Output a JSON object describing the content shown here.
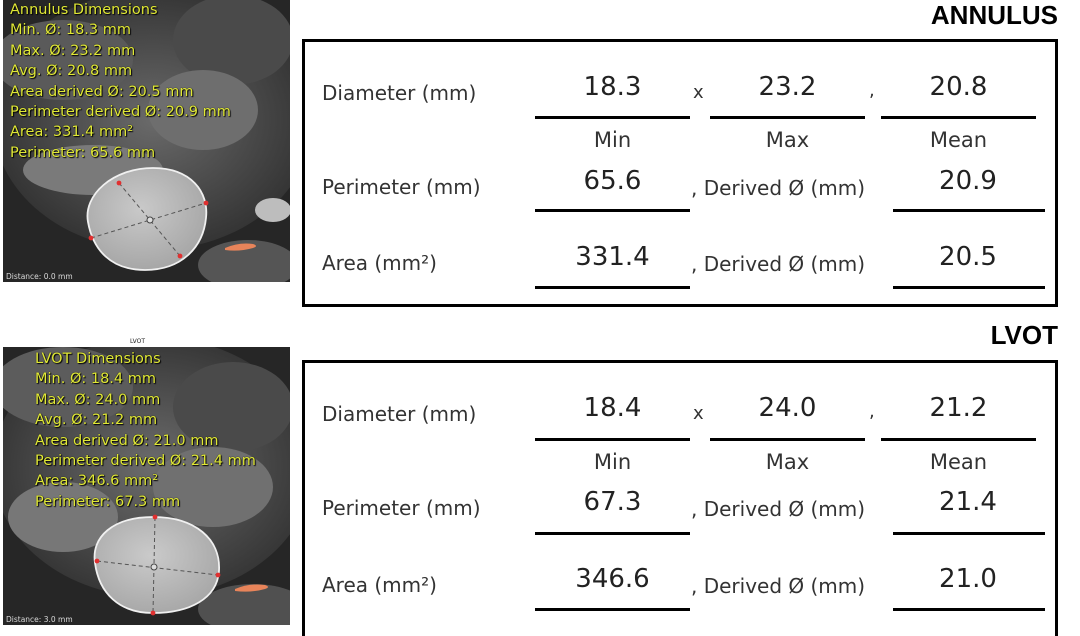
{
  "annulus": {
    "title": "ANNULUS",
    "overlay": {
      "lines": [
        "Annulus Dimensions",
        "Min. Ø: 18.3 mm",
        "Max. Ø: 23.2 mm",
        "Avg. Ø: 20.8 mm",
        "Area derived Ø: 20.5 mm",
        "Perimeter derived Ø: 20.9 mm",
        "Area: 331.4 mm²",
        "Perimeter: 65.6 mm"
      ],
      "distance": "Distance: 0.0 mm"
    },
    "diameter_label": "Diameter (mm)",
    "min": "18.3",
    "max": "23.2",
    "mean": "20.8",
    "x_sep": "x",
    "comma": ",",
    "min_label": "Min",
    "max_label": "Max",
    "mean_label": "Mean",
    "perimeter_label": "Perimeter (mm)",
    "perimeter": "65.6",
    "perimeter_derived_label": ", Derived Ø (mm)",
    "perimeter_derived": "20.9",
    "area_label": "Area (mm²)",
    "area": "331.4",
    "area_derived_label": ", Derived Ø (mm)",
    "area_derived": "20.5"
  },
  "lvot": {
    "title": "LVOT",
    "caption": "LVOT",
    "overlay": {
      "lines": [
        "LVOT Dimensions",
        "Min. Ø: 18.4 mm",
        "Max. Ø: 24.0 mm",
        "Avg. Ø: 21.2 mm",
        "Area derived Ø: 21.0 mm",
        "Perimeter derived Ø: 21.4 mm",
        "Area: 346.6 mm²",
        "Perimeter: 67.3 mm"
      ],
      "distance": "Distance: 3.0 mm"
    },
    "diameter_label": "Diameter (mm)",
    "min": "18.4",
    "max": "24.0",
    "mean": "21.2",
    "x_sep": "x",
    "comma": ",",
    "min_label": "Min",
    "max_label": "Max",
    "mean_label": "Mean",
    "perimeter_label": "Perimeter (mm)",
    "perimeter": "67.3",
    "perimeter_derived_label": ", Derived Ø (mm)",
    "perimeter_derived": "21.4",
    "area_label": "Area (mm²)",
    "area": "346.6",
    "area_derived_label": ", Derived Ø (mm)",
    "area_derived": "21.0"
  },
  "colors": {
    "overlay_text": "#e0e836",
    "contour": "#e8e8e8",
    "marker": "#e03030",
    "calcium": "#e8845a"
  }
}
